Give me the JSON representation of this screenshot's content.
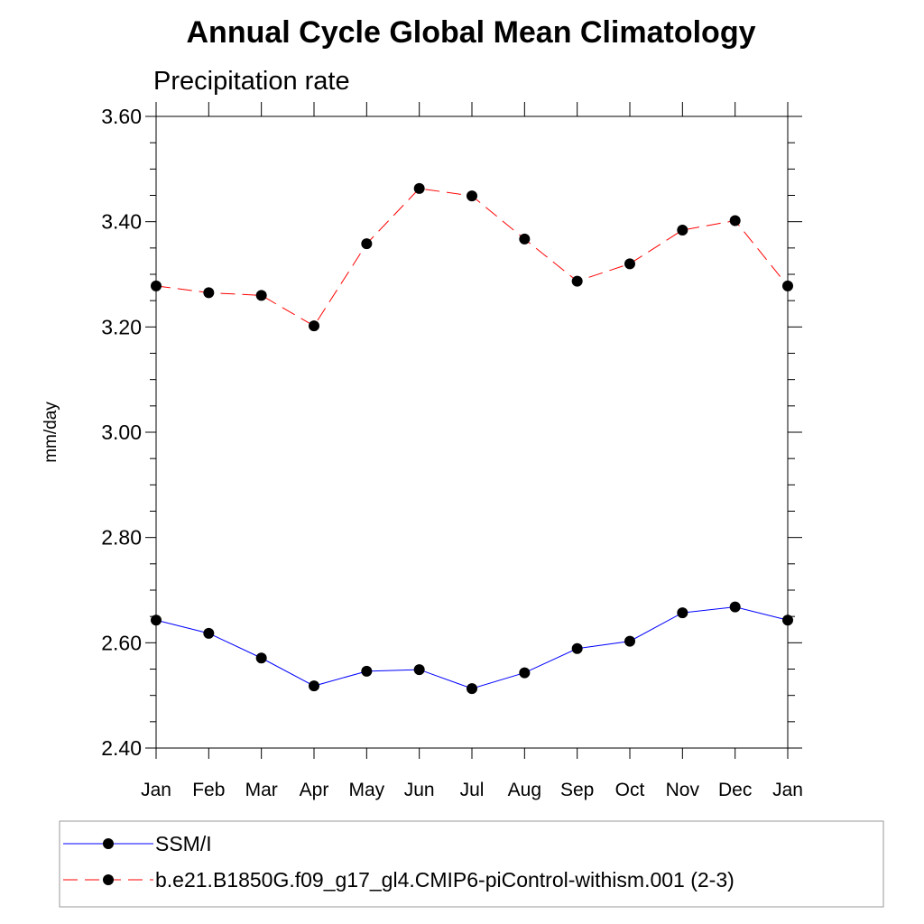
{
  "chart_data": {
    "type": "line",
    "title": "Annual Cycle Global Mean Climatology",
    "subtitle": "Precipitation rate",
    "xlabel": "",
    "ylabel": "mm/day",
    "categories": [
      "Jan",
      "Feb",
      "Mar",
      "Apr",
      "May",
      "Jun",
      "Jul",
      "Aug",
      "Sep",
      "Oct",
      "Nov",
      "Dec",
      "Jan"
    ],
    "ylim": [
      2.4,
      3.6
    ],
    "yticks": [
      "2.40",
      "2.60",
      "2.80",
      "3.00",
      "3.20",
      "3.40",
      "3.60"
    ],
    "grid": false,
    "legend_position": "bottom",
    "series": [
      {
        "name": "SSM/I",
        "color": "#0000ff",
        "line_style": "solid",
        "marker": "filled-circle",
        "values": [
          2.643,
          2.618,
          2.571,
          2.518,
          2.546,
          2.549,
          2.513,
          2.543,
          2.589,
          2.603,
          2.657,
          2.668,
          2.643
        ]
      },
      {
        "name": "b.e21.B1850G.f09_g17_gl4.CMIP6-piControl-withism.001 (2-3)",
        "color": "#ff0000",
        "line_style": "dashed",
        "marker": "filled-circle",
        "values": [
          3.278,
          3.265,
          3.26,
          3.202,
          3.358,
          3.463,
          3.449,
          3.367,
          3.287,
          3.32,
          3.384,
          3.402,
          3.278
        ]
      }
    ]
  }
}
